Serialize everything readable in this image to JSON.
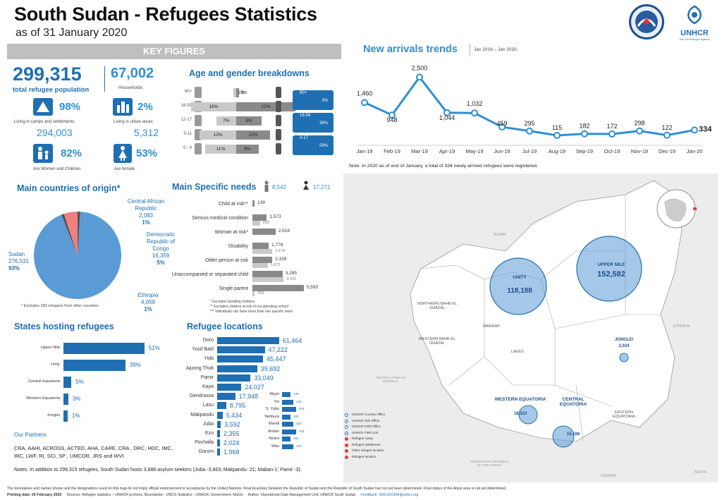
{
  "header": {
    "title": "South Sudan - Refugees Statistics",
    "subtitle": "as of 31 January 2020",
    "logo_text": "UNHCR",
    "logo_sub": "The UN Refugee Agency"
  },
  "key_figures": {
    "banner": "KEY FIGURES",
    "total": "299,315",
    "total_label": "total refugee population",
    "households": "67,002",
    "households_label": "Households",
    "camps_pct": "98%",
    "camps_label": "Living in camps and settlements",
    "camps_val": "294,003",
    "urban_pct": "2%",
    "urban_label": "Living in urban areas",
    "urban_val": "5,312",
    "women_children_pct": "82%",
    "women_children_label": "Are Women and Children",
    "female_pct": "53%",
    "female_label": "Are female"
  },
  "age_gender": {
    "title": "Age and gender breakdowns",
    "rows": [
      {
        "label": "60+",
        "m": "1%",
        "f": "1%",
        "mv": 1,
        "fv": 1
      },
      {
        "label": "18-59",
        "m": "16%",
        "f": "21%",
        "mv": 16,
        "fv": 21
      },
      {
        "label": "12-17",
        "m": "7%",
        "f": "9%",
        "mv": 7,
        "fv": 9
      },
      {
        "label": "5-11",
        "m": "13%",
        "f": "12%",
        "mv": 13,
        "fv": 12
      },
      {
        "label": "0 - 4",
        "m": "11%",
        "f": "8%",
        "mv": 11,
        "fv": 8
      }
    ],
    "side": [
      {
        "age": "60+",
        "pct": "3%"
      },
      {
        "age": "18-59",
        "pct": "38%"
      },
      {
        "age": "0-17",
        "pct": "59%"
      }
    ]
  },
  "origin": {
    "title": "Main countries of origin*",
    "sudan": {
      "name": "Sudan",
      "val": "276,531",
      "pct": "93%"
    },
    "car": {
      "name": "Central African Republic",
      "val": "2,083",
      "pct": "1%"
    },
    "drc": {
      "name": "Democratic Republic of Congo",
      "val": "16,359",
      "pct": "5%"
    },
    "eth": {
      "name": "Ethiopia",
      "val": "4,059",
      "pct": "1%"
    },
    "note": "* Excludes 283 refugees from other countries",
    "colors": {
      "sudan": "#5b9bd5",
      "drc": "#f08080",
      "other": "#555555"
    }
  },
  "needs": {
    "title": "Main Specific needs",
    "male_total": "8,542",
    "female_total": "17,271",
    "rows": [
      {
        "label": "Child at risk**",
        "dark": "139",
        "light": "",
        "dv": 139,
        "lv": 0
      },
      {
        "label": "Serious medical condition",
        "dark": "1,573",
        "light": "835",
        "dv": 1573,
        "lv": 835
      },
      {
        "label": "Woman at risk*",
        "dark": "2,516",
        "light": "",
        "dv": 2516,
        "lv": 0
      },
      {
        "label": "Disability",
        "dark": "1,776",
        "light": "2,174",
        "dv": 1776,
        "lv": 2174
      },
      {
        "label": "Older person at risk",
        "dark": "2,159",
        "light": "1,673",
        "dv": 2159,
        "lv": 1673
      },
      {
        "label": "Unaccompanied or separated child",
        "dark": "3,285",
        "light": "3,421",
        "dv": 3285,
        "lv": 3421
      },
      {
        "label": "Single parent",
        "dark": "5,593",
        "light": "259",
        "dv": 5593,
        "lv": 259
      }
    ],
    "notes": [
      "* Excludes lactating mothers",
      "** Excludes children at risk of not attending school",
      "*** Individuals can have more than one specific need"
    ]
  },
  "states": {
    "title": "States hosting refugees",
    "rows": [
      {
        "label": "Upper Nile",
        "pct": "51%",
        "v": 51
      },
      {
        "label": "Unity",
        "pct": "39%",
        "v": 39
      },
      {
        "label": "Central Equatoria",
        "pct": "5%",
        "v": 5
      },
      {
        "label": "Western Equatoria",
        "pct": "3%",
        "v": 3
      },
      {
        "label": "Jonglei",
        "pct": "1%",
        "v": 1
      }
    ]
  },
  "locations": {
    "title": "Refugee locations",
    "rows": [
      {
        "label": "Doro",
        "val": "61,464",
        "v": 61464
      },
      {
        "label": "Yusif Batil",
        "val": "47,222",
        "v": 47222
      },
      {
        "label": "Yida",
        "val": "45,447",
        "v": 45447
      },
      {
        "label": "Ajuong Thok",
        "val": "39,692",
        "v": 39692
      },
      {
        "label": "Pamir",
        "val": "33,049",
        "v": 33049
      },
      {
        "label": "Kaya",
        "val": "24,027",
        "v": 24027
      },
      {
        "label": "Gendrassa",
        "val": "17,948",
        "v": 17948
      },
      {
        "label": "Lasu",
        "val": "8,795",
        "v": 8795
      },
      {
        "label": "Makpandu",
        "val": "5,434",
        "v": 5434
      },
      {
        "label": "Juba",
        "val": "3,592",
        "v": 3592
      },
      {
        "label": "Ezo",
        "val": "2,355",
        "v": 2355
      },
      {
        "label": "Pochalla",
        "val": "2,024",
        "v": 2024
      },
      {
        "label": "Gorom",
        "val": "1,968",
        "v": 1968
      }
    ],
    "small": [
      {
        "label": "Abyei",
        "val": "140"
      },
      {
        "label": "Yei",
        "val": "140"
      },
      {
        "label": "S. Yubu",
        "val": "576"
      },
      {
        "label": "Tambura",
        "val": "181"
      },
      {
        "label": "Maridi",
        "val": "318"
      },
      {
        "label": "Andari",
        "val": "332"
      },
      {
        "label": "Nzara",
        "val": "264"
      },
      {
        "label": "Wau",
        "val": "216"
      }
    ]
  },
  "partners": {
    "title": "Our Partners",
    "text": "CRA, AAHI, ACROSS, ACTED, AHA, CARE, CRA , DRC, HDC, IMC, IRC, LWF, RI, SCI, SP , UMCOR, JRS and WVI."
  },
  "notes": {
    "text": "Notes: In addition to 299,315 refugees, South Sudan hosts 3,688 asylum seekers (Juba -3,663; Makpandu- 21; Maban-1; Pamir -3)."
  },
  "trend": {
    "title": "New arrivals trends",
    "period": "Jan 2019 – Jan 2020",
    "note": "Note: In 2020 as of end of January, a total of 334 newly arrived refugees were registered."
  },
  "chart_data": {
    "type": "line",
    "x": [
      "Jan-19",
      "Feb-19",
      "Mar-19",
      "Apr-19",
      "May-19",
      "Jun-19",
      "Jul-19",
      "Aug-19",
      "Sep-19",
      "Oct-19",
      "Nov-19",
      "Dec-19",
      "Jan-20"
    ],
    "values": [
      1460,
      948,
      2500,
      1044,
      1032,
      459,
      295,
      115,
      182,
      172,
      298,
      122,
      334
    ],
    "labels": [
      "1,460",
      "948",
      "2,500",
      "1,044",
      "1,032",
      "459",
      "295",
      "115",
      "182",
      "172",
      "298",
      "122",
      "334"
    ],
    "ylim": [
      0,
      2800
    ],
    "color": "#2f8fd3"
  },
  "map": {
    "unity": {
      "name": "UNITY",
      "val": "118,188"
    },
    "uppernile": {
      "name": "UPPER NILE",
      "val": "152,582"
    },
    "jonglei": {
      "name": "JONGLEI",
      "val": "2,024"
    },
    "wequatoria": {
      "name": "WESTERN EQUATORIA",
      "val": "18,323"
    },
    "cequatoria": {
      "name": "CENTRAL EQUATORIA",
      "val": "15,188"
    },
    "regions": [
      "NORTHERN BAHR EL GHAZAL",
      "WESTERN BAHR EL GHAZAL",
      "WARRAP",
      "LAKES",
      "EASTERN EQUATORIA",
      "SUDAN",
      "ETHIOPIA",
      "CENTRAL AFRICAN REPUBLIC",
      "DEMOCRATIC REPUBLIC OF THE CONGO",
      "UGANDA",
      "KENYA"
    ],
    "legend": [
      "UNHCR Country Office",
      "UNHCR Sub Office",
      "UNHCR Field Office",
      "UNHCR Field Unit",
      "Refugee camp",
      "Refugee Settlement",
      "Other refugee location",
      "Refugee location"
    ]
  },
  "footer": {
    "disclaimer": "The boundaries and names shown and the designations used on this map do not imply official endorsement or acceptance by the United Nations. Final boundary between the Republic of Sudan and the Republic of South Sudan has not yet been determined. Final status of the Abyei area is not yet determined.",
    "print": "Printing date: 05 February 2020",
    "sources": "Sources: Refugee statistics – UNHCR proGres, Boundaries - UNCS Statistics - UNHCR, Government, NGOs",
    "author": "Author: Operational Data Management Unit, UNHCR South Sudan",
    "feedback": "Feedback: SSDJUODM@unhcr.org"
  }
}
